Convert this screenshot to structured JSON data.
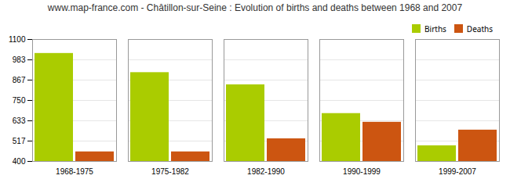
{
  "chart_data": {
    "type": "bar",
    "title": "www.map-france.com - Châtillon-sur-Seine : Evolution of births and deaths between 1968 and 2007",
    "categories": [
      "1968-1975",
      "1975-1982",
      "1982-1990",
      "1990-1999",
      "1999-2007"
    ],
    "series": [
      {
        "name": "Births",
        "color": "#aacc00",
        "values": [
          1020,
          910,
          840,
          675,
          490
        ]
      },
      {
        "name": "Deaths",
        "color": "#cc5511",
        "values": [
          455,
          455,
          530,
          625,
          580
        ]
      }
    ],
    "ylim": [
      400,
      1100
    ],
    "yticks": [
      400,
      517,
      633,
      750,
      867,
      983,
      1100
    ],
    "grid": true,
    "legend": "top-right"
  }
}
